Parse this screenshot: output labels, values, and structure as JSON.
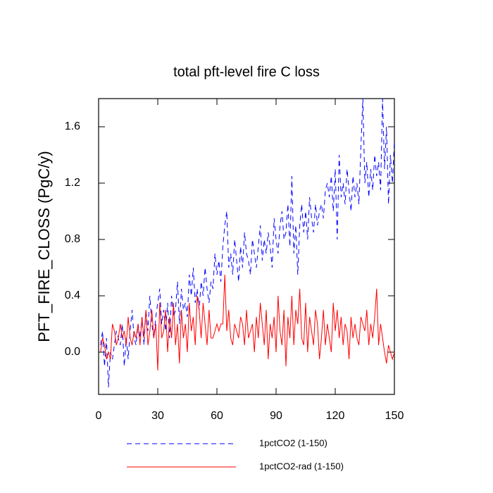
{
  "chart_data": {
    "type": "line",
    "title": "total pft-level fire C loss",
    "y_label": "PFT_FIRE_CLOSS  (PgC/y)",
    "x": [
      1,
      2,
      3,
      4,
      5,
      6,
      7,
      8,
      9,
      10,
      11,
      12,
      13,
      14,
      15,
      16,
      17,
      18,
      19,
      20,
      21,
      22,
      23,
      24,
      25,
      26,
      27,
      28,
      29,
      30,
      31,
      32,
      33,
      34,
      35,
      36,
      37,
      38,
      39,
      40,
      41,
      42,
      43,
      44,
      45,
      46,
      47,
      48,
      49,
      50,
      51,
      52,
      53,
      54,
      55,
      56,
      57,
      58,
      59,
      60,
      61,
      62,
      63,
      64,
      65,
      66,
      67,
      68,
      69,
      70,
      71,
      72,
      73,
      74,
      75,
      76,
      77,
      78,
      79,
      80,
      81,
      82,
      83,
      84,
      85,
      86,
      87,
      88,
      89,
      90,
      91,
      92,
      93,
      94,
      95,
      96,
      97,
      98,
      99,
      100,
      101,
      102,
      103,
      104,
      105,
      106,
      107,
      108,
      109,
      110,
      111,
      112,
      113,
      114,
      115,
      116,
      117,
      118,
      119,
      120,
      121,
      122,
      123,
      124,
      125,
      126,
      127,
      128,
      129,
      130,
      131,
      132,
      133,
      134,
      135,
      136,
      137,
      138,
      139,
      140,
      141,
      142,
      143,
      144,
      145,
      146,
      147,
      148,
      149,
      150
    ],
    "series": [
      {
        "name": "1pctCO2 (1-150)",
        "color": "#0000ff",
        "line_style": "dashed",
        "values": [
          0.05,
          0.15,
          -0.1,
          0.1,
          -0.25,
          0.0,
          -0.05,
          0.05,
          0.15,
          0.1,
          0.05,
          0.2,
          -0.1,
          0.1,
          -0.05,
          0.15,
          0.3,
          0.1,
          0.05,
          0.2,
          0.1,
          0.25,
          0.05,
          0.3,
          0.15,
          0.4,
          0.2,
          0.1,
          0.25,
          0.35,
          0.45,
          0.2,
          0.3,
          0.15,
          0.35,
          0.1,
          0.4,
          0.25,
          0.3,
          0.5,
          0.2,
          0.45,
          0.3,
          0.35,
          0.25,
          0.55,
          0.4,
          0.6,
          0.35,
          0.45,
          0.3,
          0.5,
          0.4,
          0.6,
          0.45,
          0.35,
          0.5,
          0.45,
          0.7,
          0.55,
          0.65,
          0.5,
          0.75,
          0.9,
          1.0,
          0.6,
          0.7,
          0.55,
          0.8,
          0.65,
          0.5,
          0.75,
          0.6,
          0.85,
          0.7,
          0.65,
          0.55,
          0.8,
          0.7,
          0.6,
          0.75,
          0.9,
          0.65,
          0.8,
          0.7,
          0.85,
          0.75,
          0.6,
          0.95,
          0.8,
          0.7,
          0.9,
          1.0,
          0.8,
          0.85,
          1.05,
          0.75,
          1.25,
          0.7,
          0.9,
          0.55,
          0.9,
          1.05,
          0.85,
          1.0,
          0.8,
          1.1,
          0.95,
          0.85,
          1.05,
          0.9,
          1.0,
          1.05,
          0.95,
          1.15,
          1.2,
          1.1,
          1.25,
          1.0,
          1.3,
          0.8,
          1.4,
          1.1,
          1.2,
          1.05,
          1.3,
          1.15,
          1.0,
          1.25,
          1.1,
          1.2,
          1.05,
          1.45,
          1.8,
          1.2,
          1.35,
          1.1,
          1.3,
          1.15,
          1.4,
          1.25,
          1.35,
          1.15,
          1.8,
          1.3,
          1.6,
          1.05,
          1.4,
          1.2,
          1.5
        ]
      },
      {
        "name": "1pctCO2-rad (1-150)",
        "color": "#ff0000",
        "line_style": "solid",
        "values": [
          0.0,
          0.1,
          0.05,
          -0.05,
          0.0,
          -0.05,
          0.2,
          0.15,
          0.05,
          0.1,
          0.2,
          0.1,
          0.15,
          0.05,
          0.25,
          0.1,
          0.05,
          0.15,
          0.1,
          0.2,
          0.05,
          0.25,
          0.1,
          0.3,
          0.05,
          0.15,
          0.3,
          0.1,
          0.2,
          -0.13,
          0.35,
          0.1,
          0.15,
          0.3,
          0.0,
          0.25,
          0.1,
          0.35,
          0.05,
          0.2,
          -0.08,
          0.3,
          0.1,
          0.2,
          0.0,
          0.35,
          0.15,
          0.25,
          0.05,
          0.4,
          0.3,
          0.1,
          0.35,
          0.2,
          0.05,
          0.3,
          0.1,
          0.1,
          0.15,
          0.2,
          0.15,
          0.2,
          0.2,
          0.55,
          0.15,
          0.3,
          0.1,
          0.05,
          0.2,
          0.15,
          0.1,
          0.25,
          0.2,
          0.05,
          0.3,
          0.1,
          0.15,
          0.2,
          0.0,
          0.25,
          0.1,
          0.35,
          0.2,
          0.05,
          0.3,
          -0.05,
          0.2,
          0.1,
          0.25,
          0.0,
          0.4,
          0.15,
          0.05,
          0.3,
          -0.1,
          0.25,
          0.1,
          0.4,
          0.05,
          0.3,
          0.2,
          0.45,
          0.1,
          0.05,
          0.35,
          0.0,
          0.25,
          0.15,
          0.05,
          0.3,
          0.2,
          -0.05,
          0.1,
          0.3,
          0.05,
          0.2,
          0.1,
          0.0,
          0.35,
          0.15,
          0.3,
          0.1,
          0.25,
          0.05,
          0.2,
          0.15,
          -0.05,
          0.25,
          0.1,
          0.2,
          0.1,
          0.05,
          0.25,
          0.2,
          0.15,
          0.3,
          0.05,
          0.2,
          0.1,
          0.25,
          0.45,
          0.05,
          0.2,
          0.1,
          0.0,
          -0.08,
          0.05,
          0.0,
          -0.05,
          0.0
        ]
      }
    ],
    "xlim": [
      0,
      150
    ],
    "xticks": [
      0,
      30,
      60,
      90,
      120,
      150
    ],
    "ylim": [
      -0.3,
      1.8
    ],
    "yticks": [
      {
        "value": 0,
        "label": "0.0"
      },
      0.4,
      0.8,
      1.2,
      1.6
    ],
    "grid": false,
    "legend": "bottom"
  }
}
